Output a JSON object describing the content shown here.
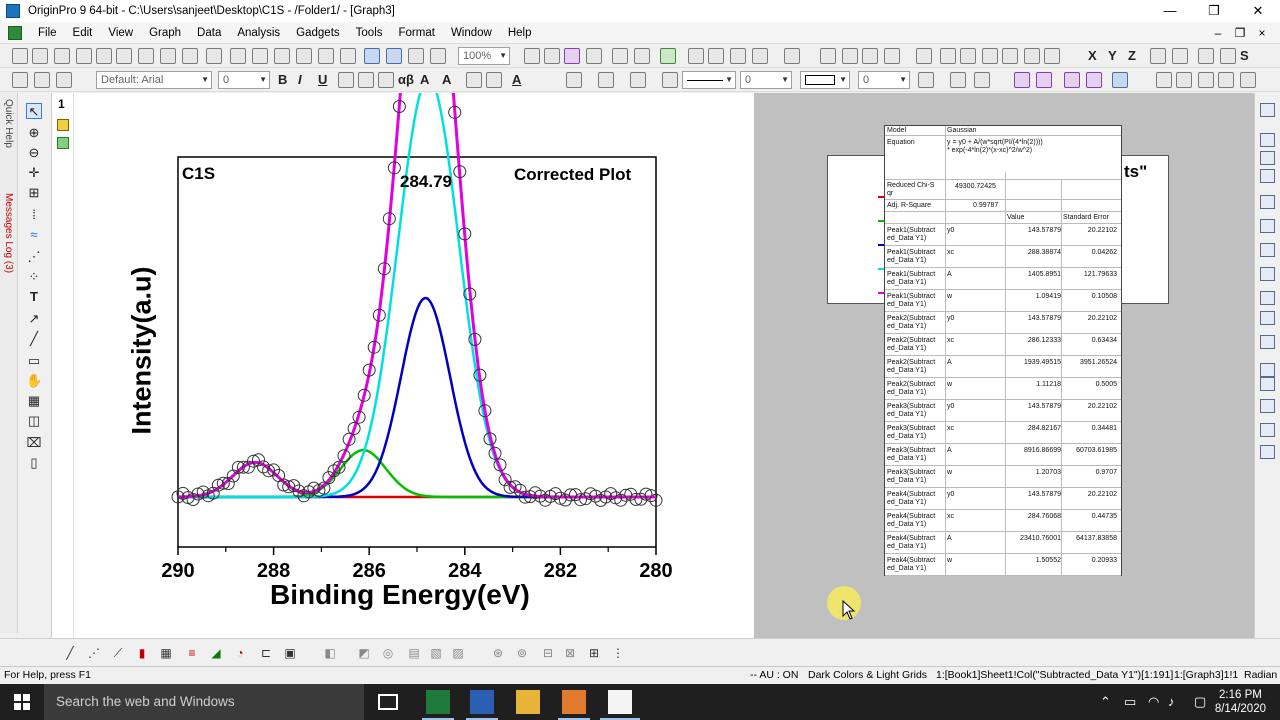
{
  "window": {
    "title": "OriginPro 9 64-bit - C:\\Users\\sanjeet\\Desktop\\C1S - /Folder1/ - [Graph3]",
    "min_glyph": "—",
    "max_glyph": "❐",
    "close_glyph": "✕"
  },
  "menu": {
    "items": [
      "File",
      "Edit",
      "View",
      "Graph",
      "Data",
      "Analysis",
      "Gadgets",
      "Tools",
      "Format",
      "Window",
      "Help"
    ],
    "mdi_min": "–",
    "mdi_restore": "❐",
    "mdi_close": "×"
  },
  "toolbar": {
    "zoom_value": "100%",
    "font_value": "Default: Arial",
    "font_size": "0",
    "font_size2": "0",
    "line_width": "0",
    "border_width": "0",
    "bold": "B",
    "italic": "I",
    "underline": "U",
    "greek": "αβ"
  },
  "left_dock": {
    "quick_help": "Quick Help",
    "messages_log": "Messages Log (3)",
    "layer_number": "1"
  },
  "graph": {
    "sample_label": "C1S",
    "plot_title": "Corrected Plot",
    "peak_annotation": "284.79",
    "legend_fragment": "ts\"",
    "chart_data": {
      "type": "line",
      "xlabel": "Binding Energy(eV)",
      "ylabel": "Intensity(a.u)",
      "xlim": [
        290,
        280
      ],
      "x_reversed": true,
      "ylim": [
        -1600,
        12000
      ],
      "x_ticks": [
        "290",
        "288",
        "286",
        "284",
        "282",
        "280"
      ],
      "series": [
        {
          "color": "#e000e0",
          "type": "line",
          "peaks": [
            {
              "xc": 288.38874,
              "w": 1.09419,
              "A": 1405.8951
            },
            {
              "xc": 286.12333,
              "w": 1.11218,
              "A": 1939.49515
            },
            {
              "xc": 284.82167,
              "w": 1.20703,
              "A": 8916.86699
            },
            {
              "xc": 284.76068,
              "w": 1.50552,
              "A": 23410.76001
            }
          ],
          "y0": 143.57879
        },
        {
          "color": "#00e0e0",
          "type": "line",
          "peaks": [
            {
              "xc": 284.76068,
              "w": 1.50552,
              "A": 23410.76001
            }
          ],
          "y0": 143.57879
        },
        {
          "color": "#0000c0",
          "type": "line",
          "peaks": [
            {
              "xc": 284.82167,
              "w": 1.20703,
              "A": 8916.86699
            }
          ],
          "y0": 143.57879
        },
        {
          "color": "#00c000",
          "type": "line",
          "peaks": [
            {
              "xc": 286.12333,
              "w": 1.11218,
              "A": 1939.49515
            }
          ],
          "y0": 143.57879
        },
        {
          "color": "#e00000",
          "type": "line",
          "peaks": [
            {
              "xc": 288.38874,
              "w": 1.09419,
              "A": 1405.8951
            }
          ],
          "y0": 143.57879
        }
      ],
      "scatter_note": "open circle markers follow the cumulative envelope"
    }
  },
  "fit_table": {
    "model_label": "Model",
    "model_value": "Gaussian",
    "equation_label": "Equation",
    "equation_value": "y = y0 + A/(w*sqrt(PI/(4*ln(2))))\n* exp(-4*ln(2)*(x-xc)^2/w^2)",
    "chi_label": "Reduced Chi-S\nqr",
    "chi_value": "49300.72425",
    "r2_label": "Adj. R-Square",
    "r2_value": "0.99787",
    "col_value": "Value",
    "col_error": "Standard Error",
    "rows": [
      {
        "name": "Peak1(Subtract\ned_Data Y1)",
        "param": "y0",
        "value": "143.57879",
        "error": "20.22102"
      },
      {
        "name": "Peak1(Subtract\ned_Data Y1)",
        "param": "xc",
        "value": "288.38874",
        "error": "0.04262"
      },
      {
        "name": "Peak1(Subtract\ned_Data Y1)",
        "param": "A",
        "value": "1405.8951",
        "error": "121.79633"
      },
      {
        "name": "Peak1(Subtract\ned_Data Y1)",
        "param": "w",
        "value": "1.09419",
        "error": "0.10508"
      },
      {
        "name": "Peak2(Subtract\ned_Data Y1)",
        "param": "y0",
        "value": "143.57879",
        "error": "20.22102"
      },
      {
        "name": "Peak2(Subtract\ned_Data Y1)",
        "param": "xc",
        "value": "286.12333",
        "error": "0.63434"
      },
      {
        "name": "Peak2(Subtract\ned_Data Y1)",
        "param": "A",
        "value": "1939.49515",
        "error": "3951.26524"
      },
      {
        "name": "Peak2(Subtract\ned_Data Y1)",
        "param": "w",
        "value": "1.11218",
        "error": "0.5005"
      },
      {
        "name": "Peak3(Subtract\ned_Data Y1)",
        "param": "y0",
        "value": "143.57879",
        "error": "20.22102"
      },
      {
        "name": "Peak3(Subtract\ned_Data Y1)",
        "param": "xc",
        "value": "284.82167",
        "error": "0.34481"
      },
      {
        "name": "Peak3(Subtract\ned_Data Y1)",
        "param": "A",
        "value": "8916.86699",
        "error": "60703.61985"
      },
      {
        "name": "Peak3(Subtract\ned_Data Y1)",
        "param": "w",
        "value": "1.20703",
        "error": "0.9707"
      },
      {
        "name": "Peak4(Subtract\ned_Data Y1)",
        "param": "y0",
        "value": "143.57879",
        "error": "20.22102"
      },
      {
        "name": "Peak4(Subtract\ned_Data Y1)",
        "param": "xc",
        "value": "284.76068",
        "error": "0.44735"
      },
      {
        "name": "Peak4(Subtract\ned_Data Y1)",
        "param": "A",
        "value": "23410.76001",
        "error": "64137.83858"
      },
      {
        "name": "Peak4(Subtract\ned_Data Y1)",
        "param": "w",
        "value": "1.50552",
        "error": "0.20933"
      }
    ]
  },
  "status": {
    "help": "For Help, press F1",
    "au": "-- AU : ON",
    "theme": "Dark Colors & Light Grids",
    "col": "1:[Book1]Sheet1!Col(\"Subtracted_Data Y1\")[1:191]",
    "graph": "1:[Graph3]1!1",
    "angle": "Radian"
  },
  "taskbar": {
    "search_placeholder": "Search the web and Windows",
    "time": "2:16 PM",
    "date": "8/14/2020"
  },
  "colors": {
    "envelope": "#e000e0",
    "peak4": "#00e0e0",
    "peak3": "#0000c0",
    "peak2": "#00c000",
    "peak1": "#e00000"
  }
}
